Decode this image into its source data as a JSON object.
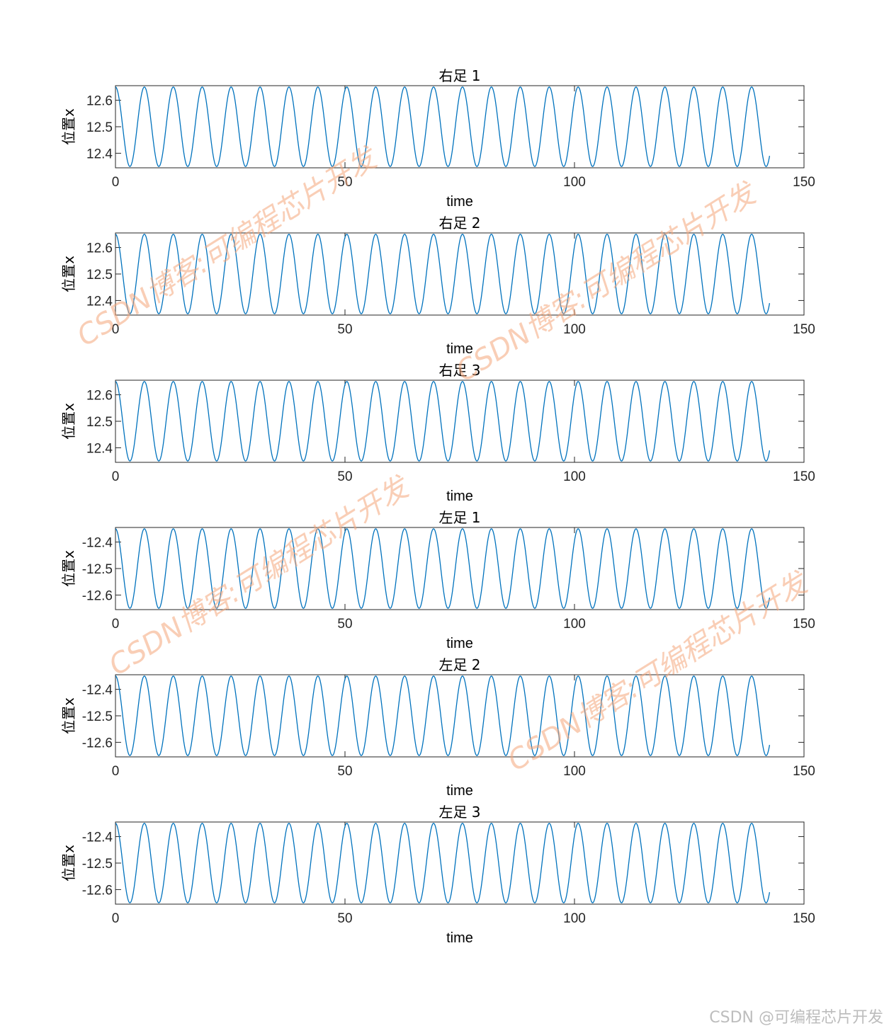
{
  "chart_data": [
    {
      "type": "line",
      "title": "右足 1",
      "xlabel": "time",
      "ylabel": "位置x",
      "xlim": [
        0,
        150
      ],
      "ylim": [
        12.345,
        12.655
      ],
      "xticks": [
        "0",
        "50",
        "100",
        "150"
      ],
      "yticks": [
        "12.4",
        "12.5",
        "12.6"
      ],
      "ytick_values": [
        12.4,
        12.5,
        12.6
      ],
      "series": [
        {
          "center": 12.5,
          "amplitude": 0.15,
          "period": 6.3,
          "x_end": 142.5,
          "phase_deg": 90
        }
      ]
    },
    {
      "type": "line",
      "title": "右足 2",
      "xlabel": "time",
      "ylabel": "位置x",
      "xlim": [
        0,
        150
      ],
      "ylim": [
        12.345,
        12.655
      ],
      "xticks": [
        "0",
        "50",
        "100",
        "150"
      ],
      "yticks": [
        "12.4",
        "12.5",
        "12.6"
      ],
      "ytick_values": [
        12.4,
        12.5,
        12.6
      ],
      "series": [
        {
          "center": 12.5,
          "amplitude": 0.15,
          "period": 6.3,
          "x_end": 142.5,
          "phase_deg": 90
        }
      ]
    },
    {
      "type": "line",
      "title": "右足 3",
      "xlabel": "time",
      "ylabel": "位置x",
      "xlim": [
        0,
        150
      ],
      "ylim": [
        12.345,
        12.655
      ],
      "xticks": [
        "0",
        "50",
        "100",
        "150"
      ],
      "yticks": [
        "12.4",
        "12.5",
        "12.6"
      ],
      "ytick_values": [
        12.4,
        12.5,
        12.6
      ],
      "series": [
        {
          "center": 12.5,
          "amplitude": 0.15,
          "period": 6.3,
          "x_end": 142.5,
          "phase_deg": 90
        }
      ]
    },
    {
      "type": "line",
      "title": "左足 1",
      "xlabel": "time",
      "ylabel": "位置x",
      "xlim": [
        0,
        150
      ],
      "ylim": [
        -12.655,
        -12.345
      ],
      "xticks": [
        "0",
        "50",
        "100",
        "150"
      ],
      "yticks": [
        "-12.4",
        "-12.5",
        "-12.6"
      ],
      "ytick_values": [
        -12.4,
        -12.5,
        -12.6
      ],
      "series": [
        {
          "center": -12.5,
          "amplitude": 0.15,
          "period": 6.3,
          "x_end": 142.5,
          "phase_deg": 90
        }
      ]
    },
    {
      "type": "line",
      "title": "左足 2",
      "xlabel": "time",
      "ylabel": "位置x",
      "xlim": [
        0,
        150
      ],
      "ylim": [
        -12.655,
        -12.345
      ],
      "xticks": [
        "0",
        "50",
        "100",
        "150"
      ],
      "yticks": [
        "-12.4",
        "-12.5",
        "-12.6"
      ],
      "ytick_values": [
        -12.4,
        -12.5,
        -12.6
      ],
      "series": [
        {
          "center": -12.5,
          "amplitude": 0.15,
          "period": 6.3,
          "x_end": 142.5,
          "phase_deg": 90
        }
      ]
    },
    {
      "type": "line",
      "title": "左足 3",
      "xlabel": "time",
      "ylabel": "位置x",
      "xlim": [
        0,
        150
      ],
      "ylim": [
        -12.655,
        -12.345
      ],
      "xticks": [
        "0",
        "50",
        "100",
        "150"
      ],
      "yticks": [
        "-12.4",
        "-12.5",
        "-12.6"
      ],
      "ytick_values": [
        -12.4,
        -12.5,
        -12.6
      ],
      "series": [
        {
          "center": -12.5,
          "amplitude": 0.15,
          "period": 6.3,
          "x_end": 142.5,
          "phase_deg": 90
        }
      ]
    }
  ],
  "colors": {
    "line": "#0072BD",
    "axes": "#262626",
    "watermark": "#f4a57a"
  },
  "watermark_text": "CSDN博客:可编程芯片开发",
  "footer_text": "CSDN @可编程芯片开发"
}
